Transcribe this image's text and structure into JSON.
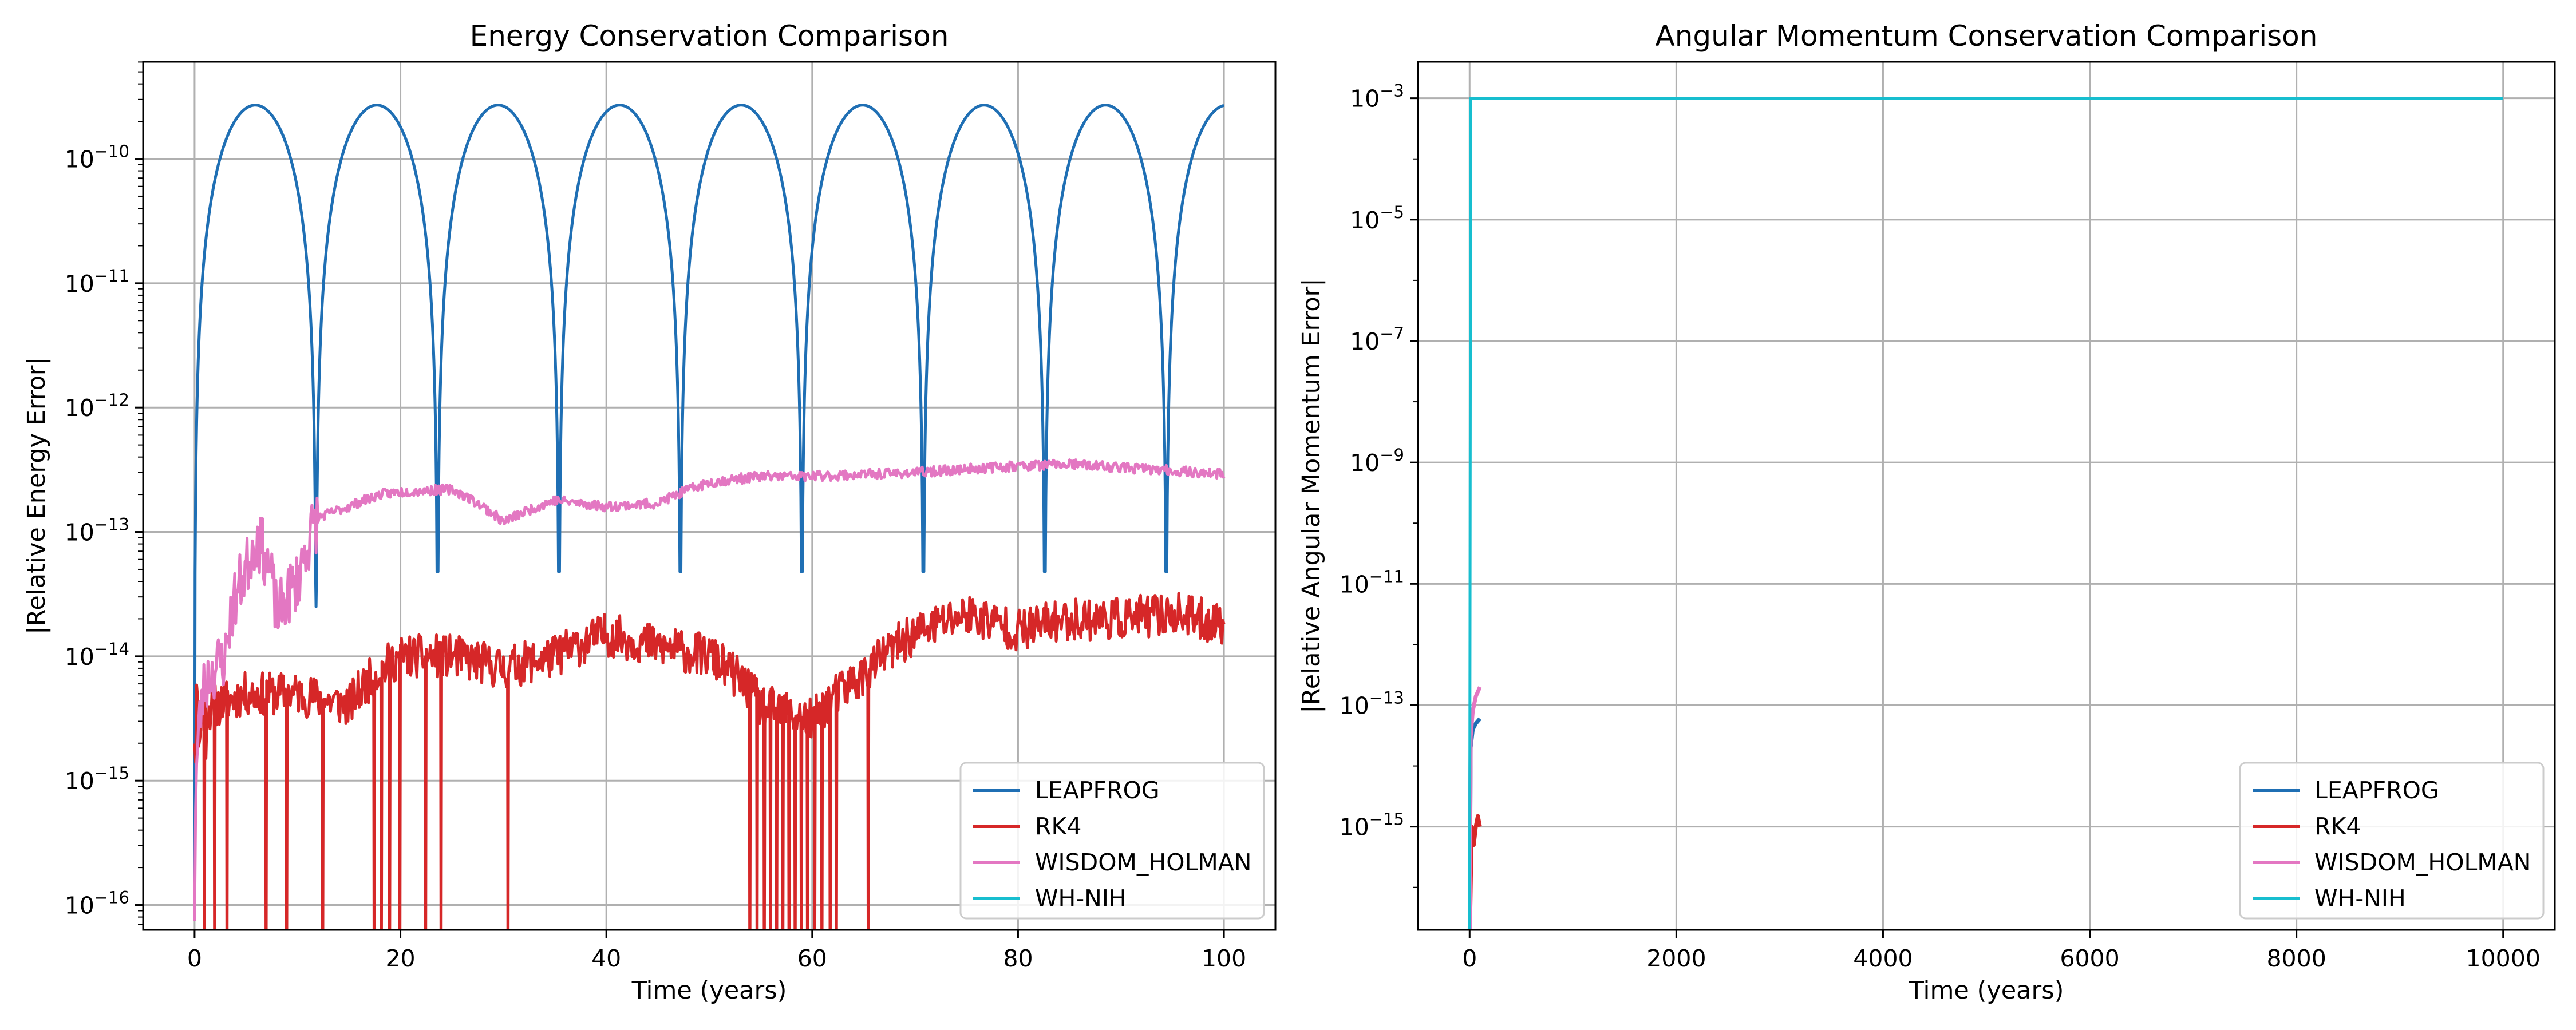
{
  "figure": "Energy and angular momentum conservation comparison of four N-body integrators",
  "colors": {
    "LEAPFROG": "#1f6fb4",
    "RK4": "#d62728",
    "WISDOM_HOLMAN": "#e377c2",
    "WH-NIH": "#17becf",
    "grid": "#b0b0b0"
  },
  "chart_data": [
    {
      "type": "line",
      "title": "Energy Conservation Comparison",
      "xlabel": "Time (years)",
      "ylabel": "|Relative Energy Error|",
      "yscale": "log",
      "xlim": [
        -5,
        105
      ],
      "ylim_exponent": [
        -16.2,
        -9.22
      ],
      "xticks": [
        0,
        20,
        40,
        60,
        80,
        100
      ],
      "yticks_exponent": [
        -16,
        -15,
        -14,
        -13,
        -12,
        -11,
        -10
      ],
      "grid": true,
      "legend_position": "lower right",
      "legend": [
        "LEAPFROG",
        "RK4",
        "WISDOM_HOLMAN",
        "WH-NIH"
      ],
      "series": [
        {
          "name": "LEAPFROG",
          "description": "oscillating relative error, period about 11.8 years, peaks near 2.7e-10, dips near 1e-13",
          "peak": 2.7e-10,
          "period_years": 11.8,
          "dips_years": [
            0,
            11.8,
            23.6,
            35.4,
            47.2,
            59.0,
            70.8,
            82.6,
            94.4
          ],
          "dip_values": [
            1e-16,
            2.5e-14,
            7e-14,
            1e-13,
            1e-13,
            1.3e-13,
            1e-13,
            1.1e-13,
            1.2e-13
          ]
        },
        {
          "name": "RK4",
          "description": "noisy error around 1e-14 with frequent deep drops below 1e-16",
          "x": [
            0,
            2,
            5,
            10,
            15,
            20,
            25,
            30,
            35,
            40,
            45,
            50,
            55,
            60,
            65,
            70,
            75,
            80,
            85,
            90,
            95,
            100
          ],
          "y": [
            3e-15,
            4e-15,
            5e-15,
            5e-15,
            4e-15,
            1e-14,
            1e-14,
            8e-15,
            1e-14,
            1.5e-14,
            1.2e-14,
            1e-14,
            4e-15,
            3e-15,
            7e-15,
            1.5e-14,
            2.2e-14,
            1.6e-14,
            2e-14,
            2e-14,
            2.2e-14,
            1.8e-14
          ],
          "drops_years": [
            1,
            2,
            3.2,
            7,
            9,
            12.5,
            17.5,
            18.2,
            19,
            20,
            22.5,
            24,
            30.5,
            54,
            54.7,
            55.4,
            56,
            56.6,
            57.2,
            57.8,
            58.4,
            59,
            59.6,
            60.3,
            61,
            61.8,
            62.4,
            65.5
          ]
        },
        {
          "name": "WISDOM_HOLMAN",
          "description": "rises from below 1e-16 to about 1e-13 by year 12, then slowly grows to about 3e-13",
          "x": [
            0,
            0.5,
            1,
            3,
            5,
            6,
            7,
            8,
            9,
            10,
            11,
            12,
            15,
            18,
            20,
            25,
            28,
            30,
            35,
            40,
            45,
            50,
            55,
            60,
            65,
            70,
            75,
            80,
            85,
            90,
            95,
            100
          ],
          "y": [
            1e-16,
            3e-15,
            6e-15,
            1e-14,
            5e-14,
            9e-14,
            6e-14,
            2e-14,
            3e-14,
            4e-14,
            8e-14,
            1.3e-13,
            1.6e-13,
            2e-13,
            2.1e-13,
            2.2e-13,
            1.6e-13,
            1.2e-13,
            1.8e-13,
            1.6e-13,
            1.7e-13,
            2.5e-13,
            2.8e-13,
            2.8e-13,
            2.9e-13,
            3e-13,
            3.2e-13,
            3.4e-13,
            3.5e-13,
            3.3e-13,
            3.1e-13,
            2.9e-13
          ]
        },
        {
          "name": "WH-NIH",
          "description": "no visible data in this panel",
          "x": [],
          "y": []
        }
      ]
    },
    {
      "type": "line",
      "title": "Angular Momentum Conservation Comparison",
      "xlabel": "Time (years)",
      "ylabel": "|Relative Angular Momentum Error|",
      "yscale": "log",
      "xlim": [
        -500,
        10500
      ],
      "ylim_exponent": [
        -16.7,
        -2.4
      ],
      "xticks": [
        0,
        2000,
        4000,
        6000,
        8000,
        10000
      ],
      "yticks_exponent": [
        -15,
        -13,
        -11,
        -9,
        -7,
        -5,
        -3
      ],
      "grid": true,
      "legend_position": "lower right",
      "legend": [
        "LEAPFROG",
        "RK4",
        "WISDOM_HOLMAN",
        "WH-NIH"
      ],
      "series": [
        {
          "name": "LEAPFROG",
          "x": [
            0,
            10,
            30,
            60,
            100
          ],
          "y": [
            1e-17,
            2e-14,
            4e-14,
            5e-14,
            6e-14
          ]
        },
        {
          "name": "RK4",
          "x": [
            0,
            20,
            40,
            60,
            80,
            100
          ],
          "y": [
            1e-17,
            1e-15,
            5e-16,
            1e-15,
            1.5e-15,
            1e-15
          ]
        },
        {
          "name": "WISDOM_HOLMAN",
          "x": [
            0,
            10,
            30,
            60,
            100
          ],
          "y": [
            1e-17,
            3e-14,
            8e-14,
            1.4e-13,
            2e-13
          ]
        },
        {
          "name": "WH-NIH",
          "x": [
            0,
            10,
            10000
          ],
          "y": [
            1e-17,
            0.001,
            0.001
          ]
        }
      ]
    }
  ]
}
